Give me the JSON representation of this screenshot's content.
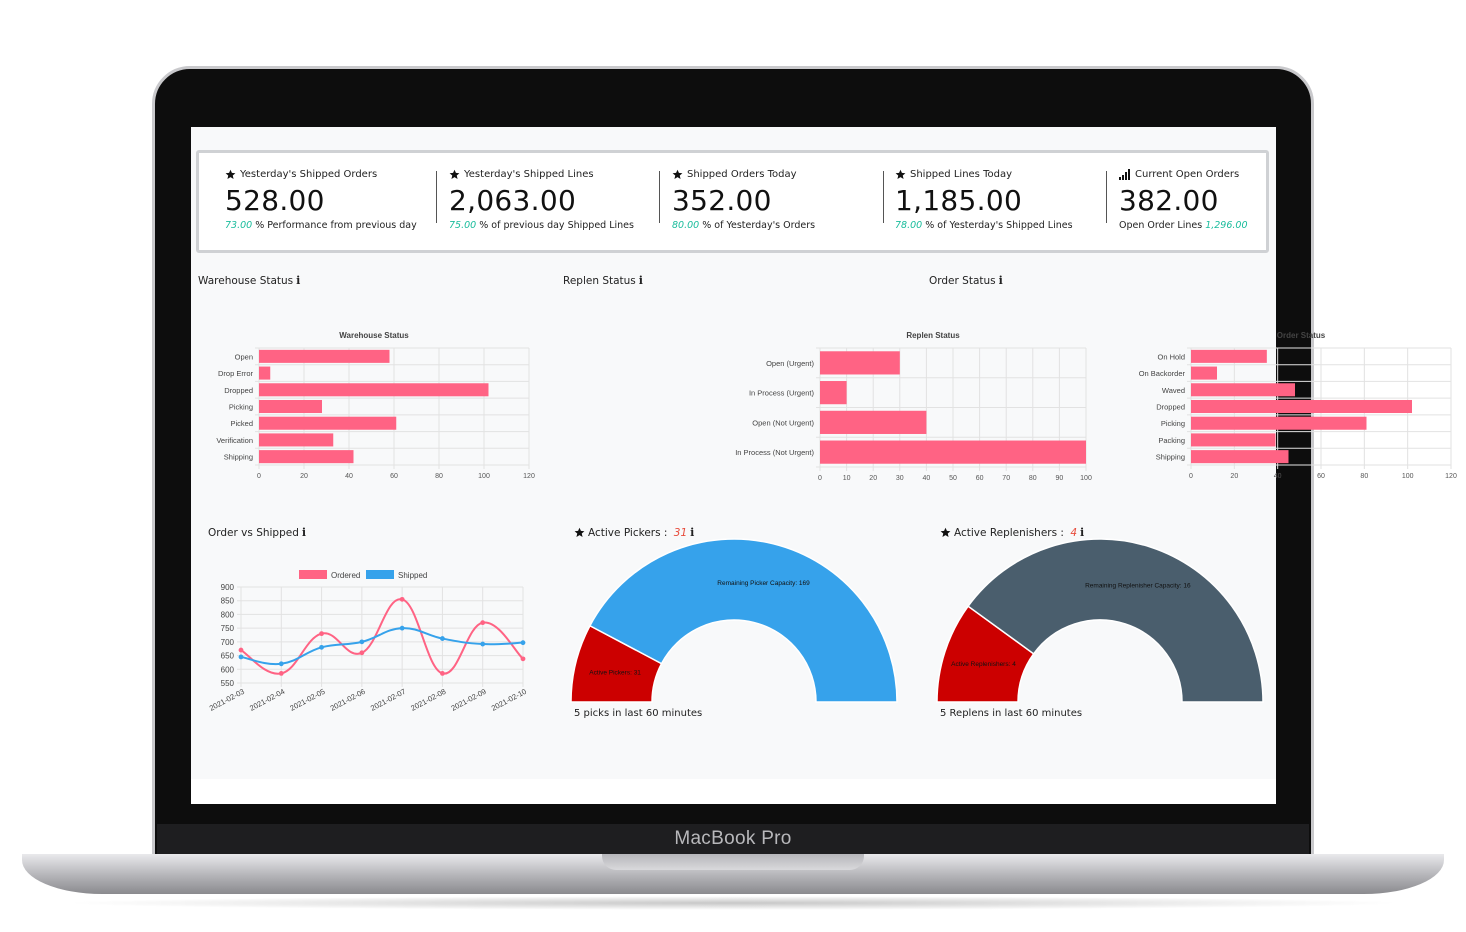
{
  "device": {
    "brand": "MacBook Pro"
  },
  "kpis": [
    {
      "icon": "star-icon",
      "title": "Yesterday's Shipped Orders",
      "value": "528.00",
      "pct": "73.00",
      "sub_before": "",
      "sub_after": " % Performance from previous day"
    },
    {
      "icon": "star-icon",
      "title": "Yesterday's Shipped Lines",
      "value": "2,063.00",
      "pct": "75.00",
      "sub_before": "",
      "sub_after": " % of previous day Shipped Lines"
    },
    {
      "icon": "star-icon",
      "title": "Shipped Orders Today",
      "value": "352.00",
      "pct": "80.00",
      "sub_before": "",
      "sub_after": " % of Yesterday's Orders"
    },
    {
      "icon": "star-icon",
      "title": "Shipped Lines Today",
      "value": "1,185.00",
      "pct": "78.00",
      "sub_before": "",
      "sub_after": " % of Yesterday's Shipped Lines"
    },
    {
      "icon": "signal-bars-icon",
      "title": "Current Open Orders",
      "value": "382.00",
      "pct": "1,296.00",
      "sub_before": "Open Order Lines ",
      "sub_after": ""
    }
  ],
  "panels": {
    "warehouse": {
      "title": "Warehouse Status",
      "info": "i"
    },
    "replen": {
      "title": "Replen Status",
      "info": "i"
    },
    "order": {
      "title": "Order Status",
      "info": "i"
    },
    "order_vs_shipped": {
      "title": "Order vs Shipped",
      "info": "i"
    },
    "pickers": {
      "title": "Active Pickers : ",
      "count": "31",
      "info": "i",
      "footnote": "5 picks in last 60 minutes"
    },
    "replenishers": {
      "title": "Active Replenishers : ",
      "count": "4",
      "info": "i",
      "footnote": "5 Replens in last 60 minutes"
    }
  },
  "colors": {
    "pink": "#ff6384",
    "blue": "#36a2eb",
    "red": "#cc0000",
    "slate": "#4a5e6d",
    "teal": "#1abc9c",
    "count_red": "#e74c3c"
  },
  "chart_data": [
    {
      "type": "bar",
      "orientation": "horizontal",
      "title": "Warehouse Status",
      "categories": [
        "Open",
        "Drop Error",
        "Dropped",
        "Picking",
        "Picked",
        "Verification",
        "Shipping"
      ],
      "values": [
        58,
        5,
        102,
        28,
        61,
        33,
        42
      ],
      "xlim": [
        0,
        120
      ],
      "xticks": [
        0,
        20,
        40,
        60,
        80,
        100,
        120
      ],
      "color": "#ff6384",
      "grid": true
    },
    {
      "type": "bar",
      "orientation": "horizontal",
      "title": "Replen Status",
      "categories": [
        "Open (Urgent)",
        "In Process (Urgent)",
        "Open (Not Urgent)",
        "In Process (Not Urgent)"
      ],
      "values": [
        30,
        10,
        40,
        100
      ],
      "xlim": [
        0,
        100
      ],
      "xticks": [
        0,
        10,
        20,
        30,
        40,
        50,
        60,
        70,
        80,
        90,
        100
      ],
      "color": "#ff6384",
      "grid": true
    },
    {
      "type": "bar",
      "orientation": "horizontal",
      "title": "Order Status",
      "categories": [
        "On Hold",
        "On Backorder",
        "Waved",
        "Dropped",
        "Picking",
        "Packing",
        "Shipping"
      ],
      "values": [
        35,
        12,
        48,
        102,
        81,
        39,
        45
      ],
      "xlim": [
        0,
        120
      ],
      "xticks": [
        0,
        20,
        40,
        60,
        80,
        100,
        120
      ],
      "color": "#ff6384",
      "grid": true
    },
    {
      "type": "line",
      "title": "",
      "x": [
        "2021-02-03",
        "2021-02-04",
        "2021-02-05",
        "2021-02-06",
        "2021-02-07",
        "2021-02-08",
        "2021-02-09",
        "2021-02-10"
      ],
      "series": [
        {
          "name": "Ordered",
          "color": "#ff6384",
          "values": [
            670,
            585,
            730,
            660,
            855,
            585,
            770,
            638
          ]
        },
        {
          "name": "Shipped",
          "color": "#36a2eb",
          "values": [
            645,
            620,
            680,
            700,
            750,
            712,
            692,
            697
          ]
        }
      ],
      "ylim": [
        550,
        900
      ],
      "yticks": [
        550,
        600,
        650,
        700,
        750,
        800,
        850,
        900
      ],
      "legend": "top",
      "grid": true
    },
    {
      "type": "pie",
      "variant": "half-doughnut",
      "title": "",
      "labels": [
        "Active Pickers",
        "Remaining Picker Capacity"
      ],
      "values": [
        31,
        169
      ],
      "colors": [
        "#cc0000",
        "#36a2eb"
      ]
    },
    {
      "type": "pie",
      "variant": "half-doughnut",
      "title": "",
      "labels": [
        "Active Replenishers",
        "Remaining Replenisher Capacity"
      ],
      "values": [
        4,
        16
      ],
      "colors": [
        "#cc0000",
        "#4a5e6d"
      ]
    }
  ]
}
